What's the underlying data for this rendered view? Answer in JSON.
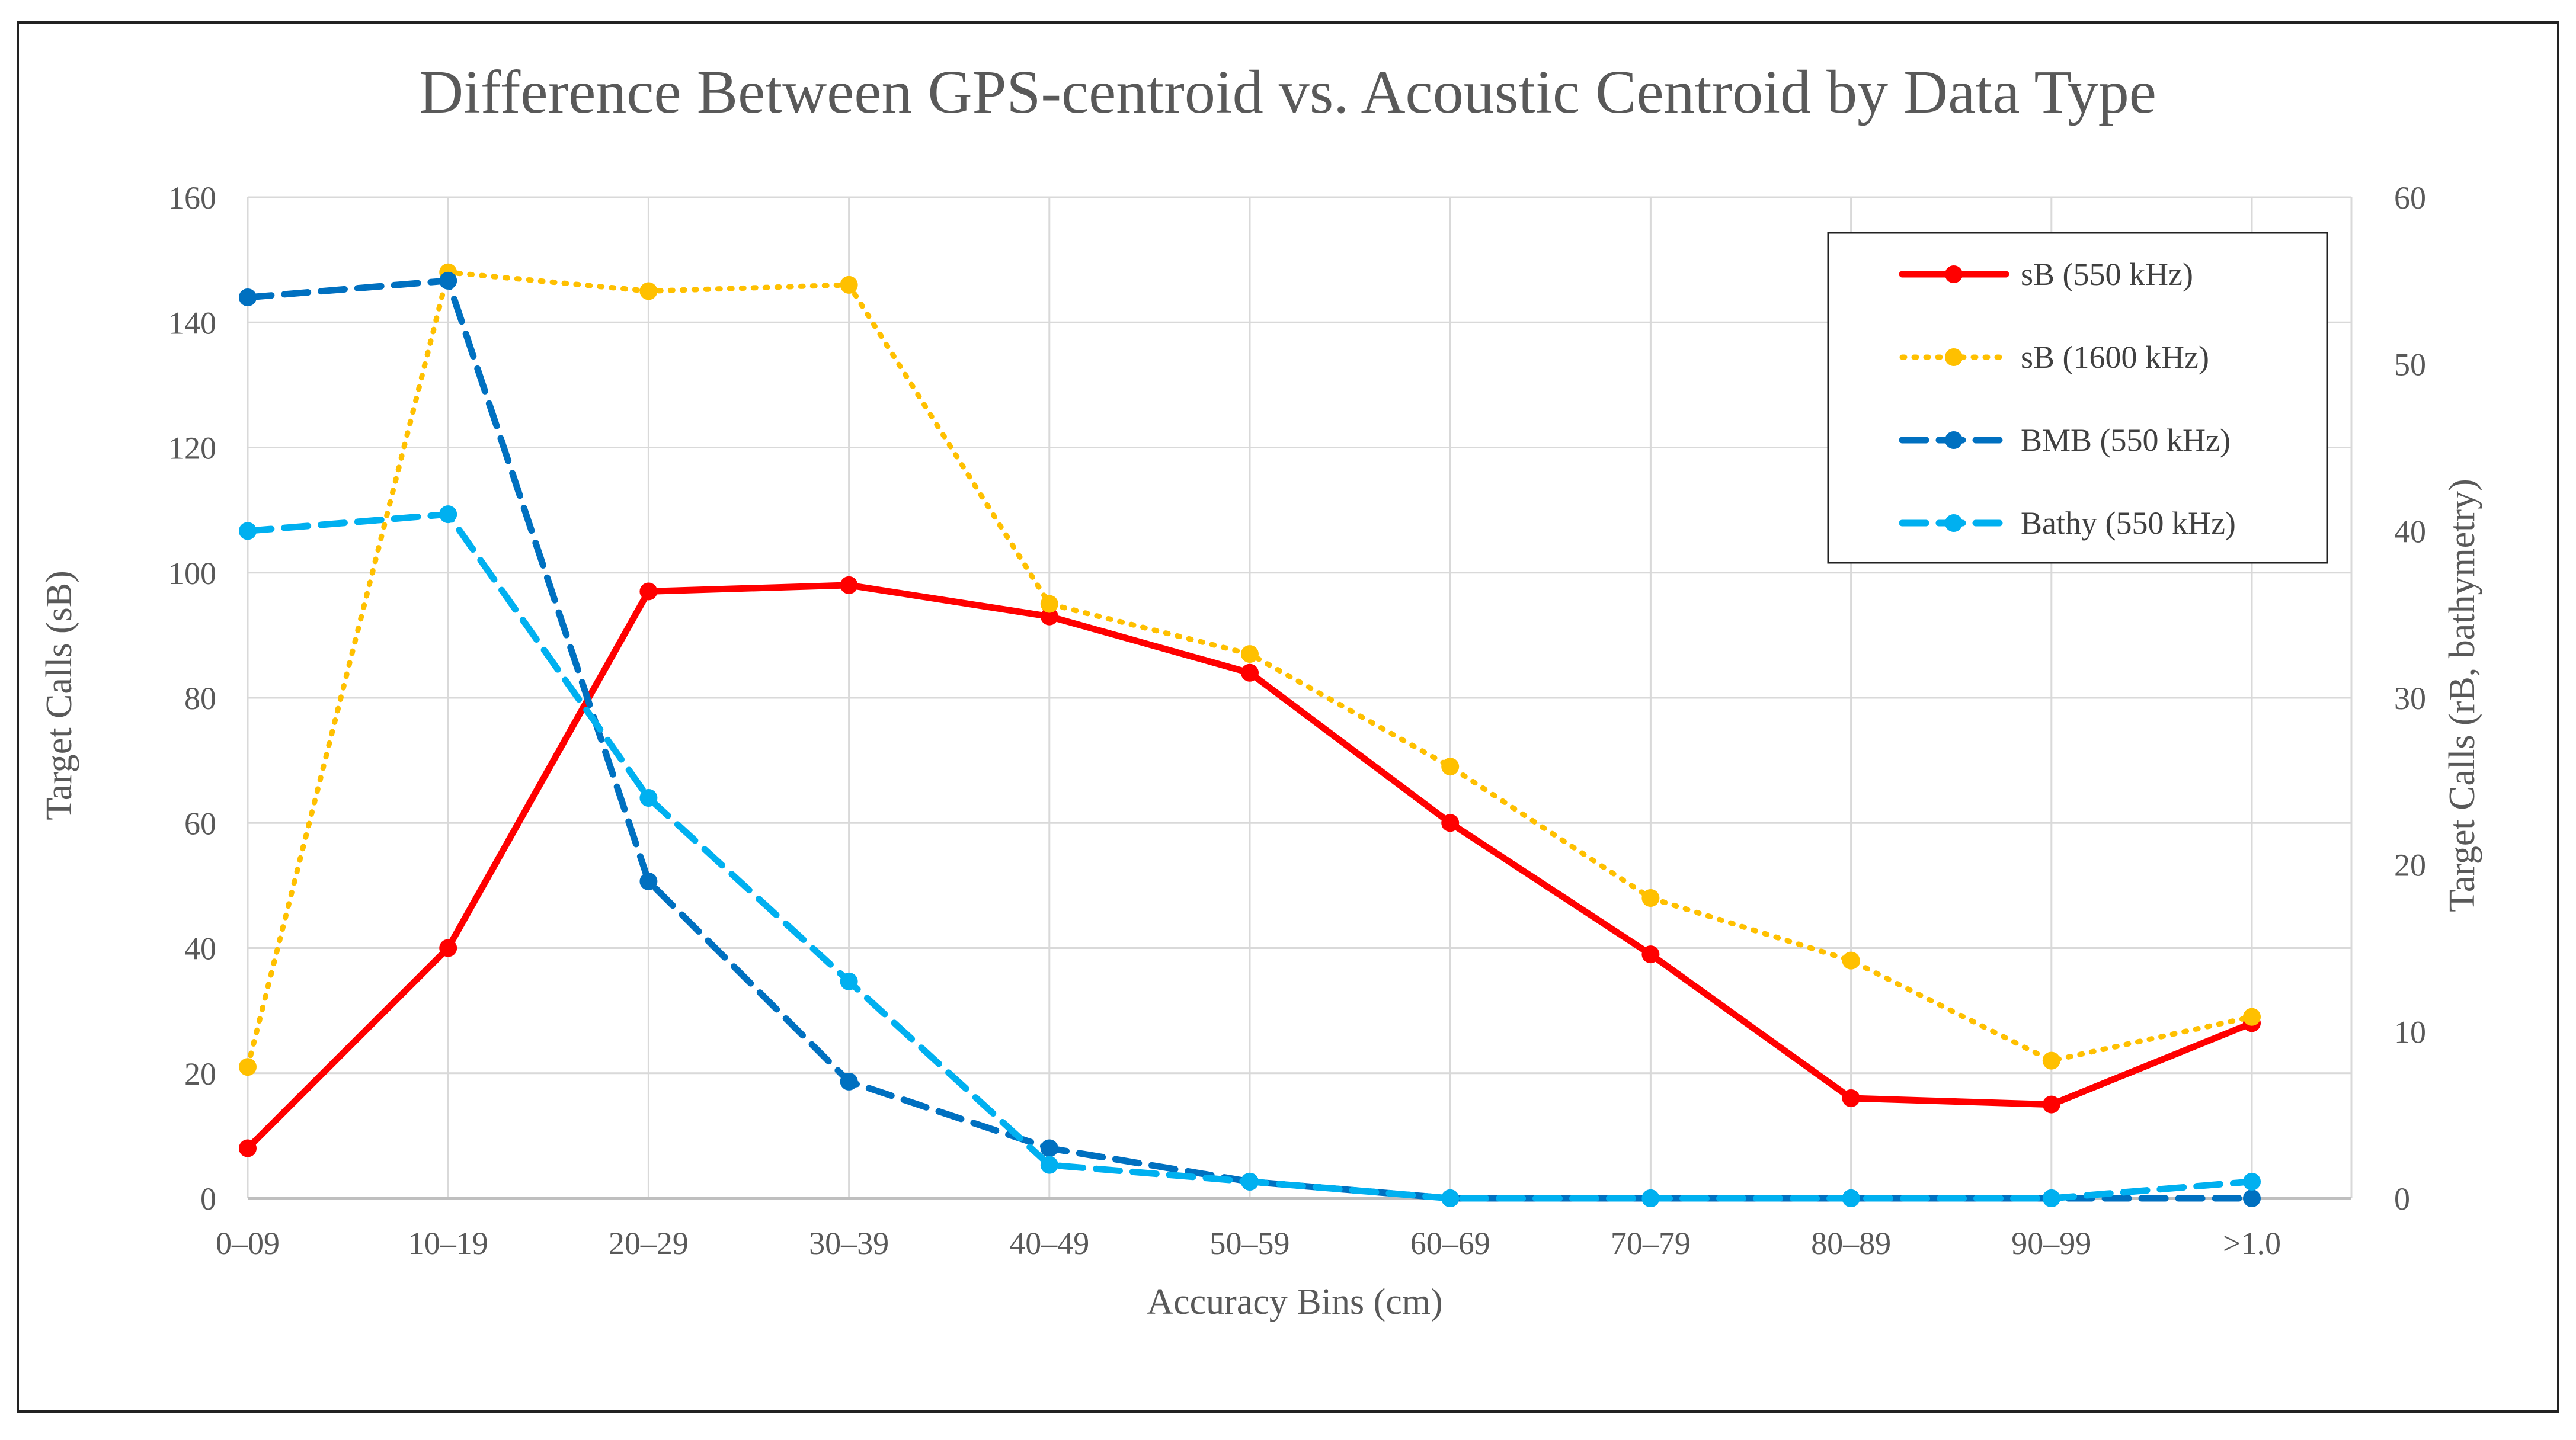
{
  "chart_data": {
    "type": "line",
    "title": "Difference Between GPS-centroid vs. Acoustic Centroid by Data Type",
    "xlabel": "Accuracy Bins (cm)",
    "ylabel": "Target Calls (sB)",
    "y2label": "Target Calls (rB, bathymetry)",
    "categories": [
      "0–09",
      "10–19",
      "20–29",
      "30–39",
      "40–49",
      "50–59",
      "60–69",
      "70–79",
      "80–89",
      "90–99",
      ">1.0"
    ],
    "ylim": [
      0,
      160
    ],
    "y2lim": [
      0,
      60
    ],
    "yticks": [
      "0",
      "20",
      "40",
      "60",
      "80",
      "100",
      "120",
      "140",
      "160"
    ],
    "y2ticks": [
      "0",
      "10",
      "20",
      "30",
      "40",
      "50",
      "60"
    ],
    "grid": true,
    "legend_position": "top-right",
    "series": [
      {
        "name": "sB (550 kHz)",
        "axis": "left",
        "color": "#FF0000",
        "style": "solid",
        "values": [
          8,
          40,
          97,
          98,
          93,
          84,
          60,
          39,
          16,
          15,
          28
        ]
      },
      {
        "name": "sB (1600 kHz)",
        "axis": "left",
        "color": "#FFC000",
        "style": "dotted",
        "values": [
          21,
          148,
          145,
          146,
          95,
          87,
          69,
          48,
          38,
          22,
          29
        ]
      },
      {
        "name": "BMB (550 kHz)",
        "axis": "right",
        "color": "#0070C0",
        "style": "dashed",
        "values": [
          54,
          55,
          19,
          7,
          3,
          1,
          0,
          0,
          0,
          0,
          0
        ]
      },
      {
        "name": "Bathy (550 kHz)",
        "axis": "right",
        "color": "#00B0F0",
        "style": "dashed",
        "values": [
          40,
          41,
          24,
          13,
          2,
          1,
          0,
          0,
          0,
          0,
          1
        ]
      }
    ]
  }
}
